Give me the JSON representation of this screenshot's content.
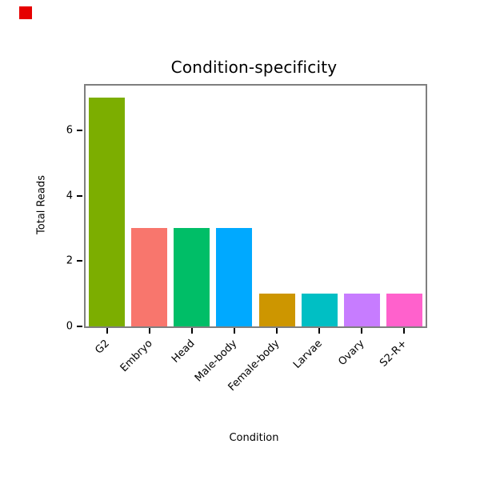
{
  "chart_data": {
    "type": "bar",
    "title": "Condition-specificity",
    "xlabel": "Condition",
    "ylabel": "Total Reads",
    "categories": [
      "G2",
      "Embryo",
      "Head",
      "Male-body",
      "Female-body",
      "Larvae",
      "Ovary",
      "S2-R+"
    ],
    "values": [
      7,
      3,
      3,
      3,
      1,
      1,
      1,
      1
    ],
    "colors": [
      "#7CAE00",
      "#F8766D",
      "#00BE67",
      "#00A9FF",
      "#CD9600",
      "#00BFC4",
      "#C77CFF",
      "#FF61CC"
    ],
    "ylim": [
      0,
      7.37
    ],
    "yticks": [
      0,
      2,
      4,
      6
    ],
    "grid": false,
    "legend": "none"
  },
  "marker": {
    "color": "#E60000"
  }
}
